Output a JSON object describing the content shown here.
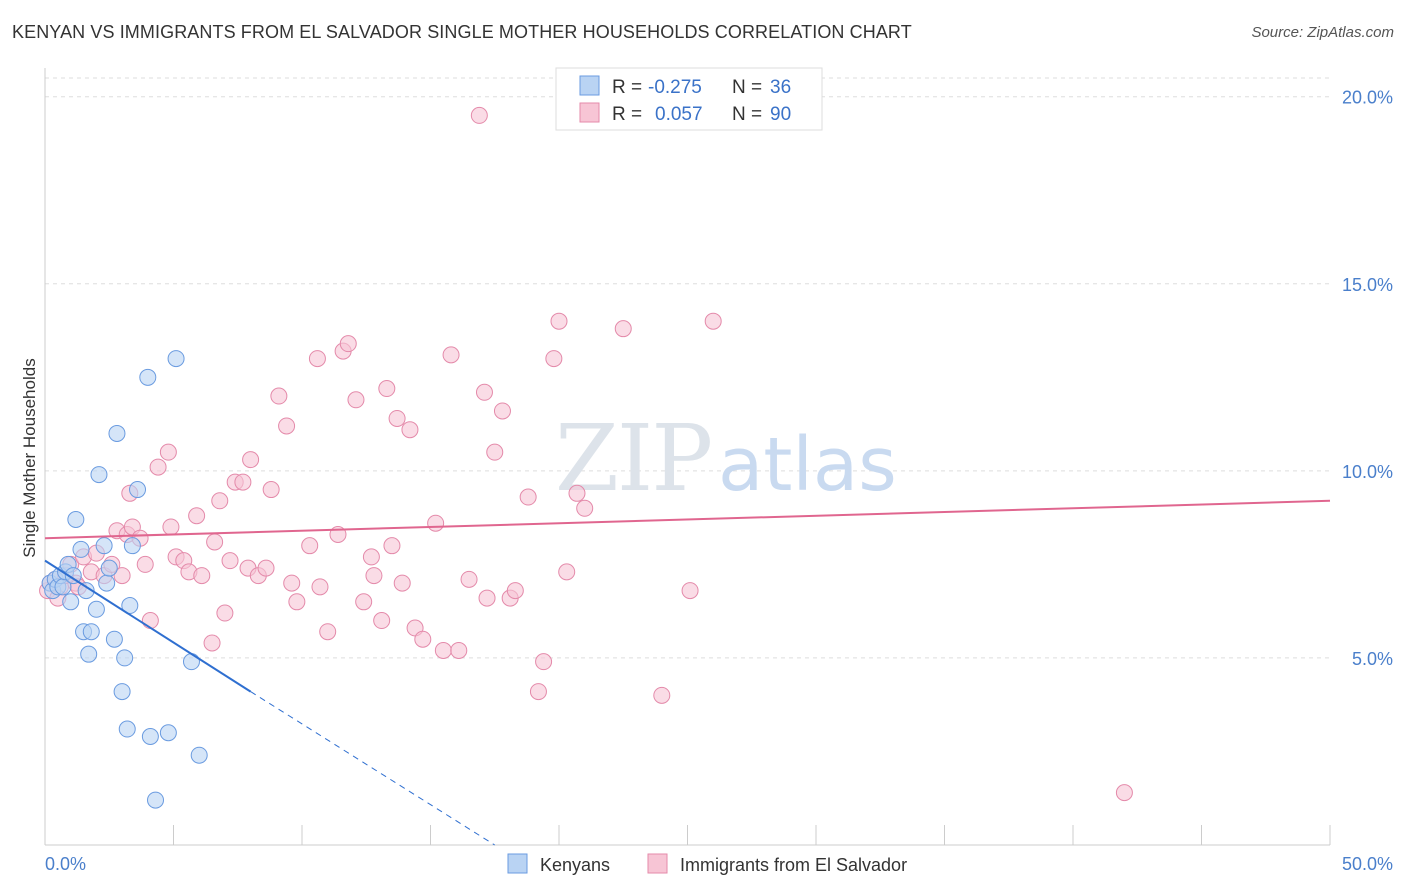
{
  "title": "KENYAN VS IMMIGRANTS FROM EL SALVADOR SINGLE MOTHER HOUSEHOLDS CORRELATION CHART",
  "source": "Source: ZipAtlas.com",
  "watermark": {
    "zip": "ZIP",
    "atlas": "atlas"
  },
  "colors": {
    "kenyan_fill": "#b9d3f3",
    "kenyan_stroke": "#6a9be0",
    "kenyan_line": "#2f6fd0",
    "salvador_fill": "#f7c5d5",
    "salvador_stroke": "#e48aaa",
    "salvador_line": "#e0668f",
    "grid": "#dddddd",
    "tick_text": "#4a7fcb"
  },
  "legend": {
    "rows": [
      {
        "r_label": "R =",
        "r_value": "-0.275",
        "n_label": "N =",
        "n_value": "36"
      },
      {
        "r_label": "R =",
        "r_value": "0.057",
        "n_label": "N =",
        "n_value": "90"
      }
    ]
  },
  "bottom_legend": {
    "kenyan": "Kenyans",
    "salvador": "Immigrants from El Salvador"
  },
  "chart_data": {
    "type": "scatter",
    "title": "KENYAN VS IMMIGRANTS FROM EL SALVADOR SINGLE MOTHER HOUSEHOLDS CORRELATION CHART",
    "xlabel": "",
    "ylabel": "Single Mother Households",
    "xlim": [
      0,
      50
    ],
    "ylim": [
      0,
      20.5
    ],
    "x_tick_labels": [
      "0.0%",
      "50.0%"
    ],
    "y_ticks": [
      5,
      10,
      15,
      20
    ],
    "y_tick_labels": [
      "5.0%",
      "10.0%",
      "15.0%",
      "20.0%"
    ],
    "grid": true,
    "series": [
      {
        "name": "Kenyans",
        "points": [
          [
            0.2,
            7.0
          ],
          [
            0.3,
            6.8
          ],
          [
            0.4,
            7.1
          ],
          [
            0.5,
            6.9
          ],
          [
            0.6,
            7.2
          ],
          [
            0.7,
            6.9
          ],
          [
            0.8,
            7.3
          ],
          [
            0.9,
            7.5
          ],
          [
            1.0,
            6.5
          ],
          [
            1.1,
            7.2
          ],
          [
            1.2,
            8.7
          ],
          [
            1.4,
            7.9
          ],
          [
            1.5,
            5.7
          ],
          [
            1.6,
            6.8
          ],
          [
            1.7,
            5.1
          ],
          [
            1.8,
            5.7
          ],
          [
            2.0,
            6.3
          ],
          [
            2.1,
            9.9
          ],
          [
            2.3,
            8.0
          ],
          [
            2.4,
            7.0
          ],
          [
            2.5,
            7.4
          ],
          [
            2.7,
            5.5
          ],
          [
            2.8,
            11.0
          ],
          [
            3.0,
            4.1
          ],
          [
            3.1,
            5.0
          ],
          [
            3.2,
            3.1
          ],
          [
            3.3,
            6.4
          ],
          [
            3.4,
            8.0
          ],
          [
            3.6,
            9.5
          ],
          [
            4.0,
            12.5
          ],
          [
            4.1,
            2.9
          ],
          [
            4.3,
            1.2
          ],
          [
            4.8,
            3.0
          ],
          [
            5.1,
            13.0
          ],
          [
            5.7,
            4.9
          ],
          [
            6.0,
            2.4
          ]
        ],
        "trend": {
          "x": [
            0,
            8
          ],
          "y": [
            7.6,
            4.1
          ],
          "dashed_extension": {
            "x": [
              8,
              17.5
            ],
            "y": [
              4.1,
              0.0
            ]
          }
        }
      },
      {
        "name": "Immigrants from El Salvador",
        "points": [
          [
            0.1,
            6.8
          ],
          [
            0.2,
            7.0
          ],
          [
            0.4,
            7.1
          ],
          [
            0.6,
            6.9
          ],
          [
            0.8,
            7.2
          ],
          [
            1.0,
            7.5
          ],
          [
            1.2,
            7.0
          ],
          [
            1.5,
            7.7
          ],
          [
            1.8,
            7.3
          ],
          [
            2.0,
            7.8
          ],
          [
            2.3,
            7.2
          ],
          [
            2.6,
            7.5
          ],
          [
            2.8,
            8.4
          ],
          [
            3.0,
            7.2
          ],
          [
            3.2,
            8.3
          ],
          [
            3.3,
            9.4
          ],
          [
            3.4,
            8.5
          ],
          [
            3.7,
            8.2
          ],
          [
            3.9,
            7.5
          ],
          [
            4.1,
            6.0
          ],
          [
            4.4,
            10.1
          ],
          [
            4.8,
            10.5
          ],
          [
            4.9,
            8.5
          ],
          [
            5.1,
            7.7
          ],
          [
            5.4,
            7.6
          ],
          [
            5.6,
            7.3
          ],
          [
            5.9,
            8.8
          ],
          [
            6.1,
            7.2
          ],
          [
            6.5,
            5.4
          ],
          [
            6.6,
            8.1
          ],
          [
            6.8,
            9.2
          ],
          [
            7.0,
            6.2
          ],
          [
            7.2,
            7.6
          ],
          [
            7.4,
            9.7
          ],
          [
            7.7,
            9.7
          ],
          [
            7.9,
            7.4
          ],
          [
            8.0,
            10.3
          ],
          [
            8.3,
            7.2
          ],
          [
            8.6,
            7.4
          ],
          [
            8.8,
            9.5
          ],
          [
            9.1,
            12.0
          ],
          [
            9.4,
            11.2
          ],
          [
            9.6,
            7.0
          ],
          [
            9.8,
            6.5
          ],
          [
            10.3,
            8.0
          ],
          [
            10.6,
            13.0
          ],
          [
            10.7,
            6.9
          ],
          [
            11.0,
            5.7
          ],
          [
            11.4,
            8.3
          ],
          [
            11.6,
            13.2
          ],
          [
            11.8,
            13.4
          ],
          [
            12.1,
            11.9
          ],
          [
            12.4,
            6.5
          ],
          [
            12.7,
            7.7
          ],
          [
            12.8,
            7.2
          ],
          [
            13.1,
            6.0
          ],
          [
            13.3,
            12.2
          ],
          [
            13.5,
            8.0
          ],
          [
            13.7,
            11.4
          ],
          [
            13.9,
            7.0
          ],
          [
            14.2,
            11.1
          ],
          [
            14.4,
            5.8
          ],
          [
            14.7,
            5.5
          ],
          [
            15.2,
            8.6
          ],
          [
            15.5,
            5.2
          ],
          [
            15.8,
            13.1
          ],
          [
            16.1,
            5.2
          ],
          [
            16.5,
            7.1
          ],
          [
            16.9,
            19.5
          ],
          [
            17.1,
            12.1
          ],
          [
            17.2,
            6.6
          ],
          [
            17.5,
            10.5
          ],
          [
            17.8,
            11.6
          ],
          [
            18.1,
            6.6
          ],
          [
            18.3,
            6.8
          ],
          [
            18.8,
            9.3
          ],
          [
            19.2,
            4.1
          ],
          [
            19.4,
            4.9
          ],
          [
            19.8,
            13.0
          ],
          [
            20.0,
            14.0
          ],
          [
            20.3,
            7.3
          ],
          [
            20.7,
            9.4
          ],
          [
            21.0,
            9.0
          ],
          [
            22.5,
            13.8
          ],
          [
            24.0,
            4.0
          ],
          [
            25.1,
            6.8
          ],
          [
            26.0,
            14.0
          ],
          [
            42.0,
            1.4
          ],
          [
            0.5,
            6.6
          ],
          [
            1.3,
            6.9
          ]
        ],
        "trend": {
          "x": [
            0,
            50
          ],
          "y": [
            8.2,
            9.2
          ]
        }
      }
    ]
  }
}
